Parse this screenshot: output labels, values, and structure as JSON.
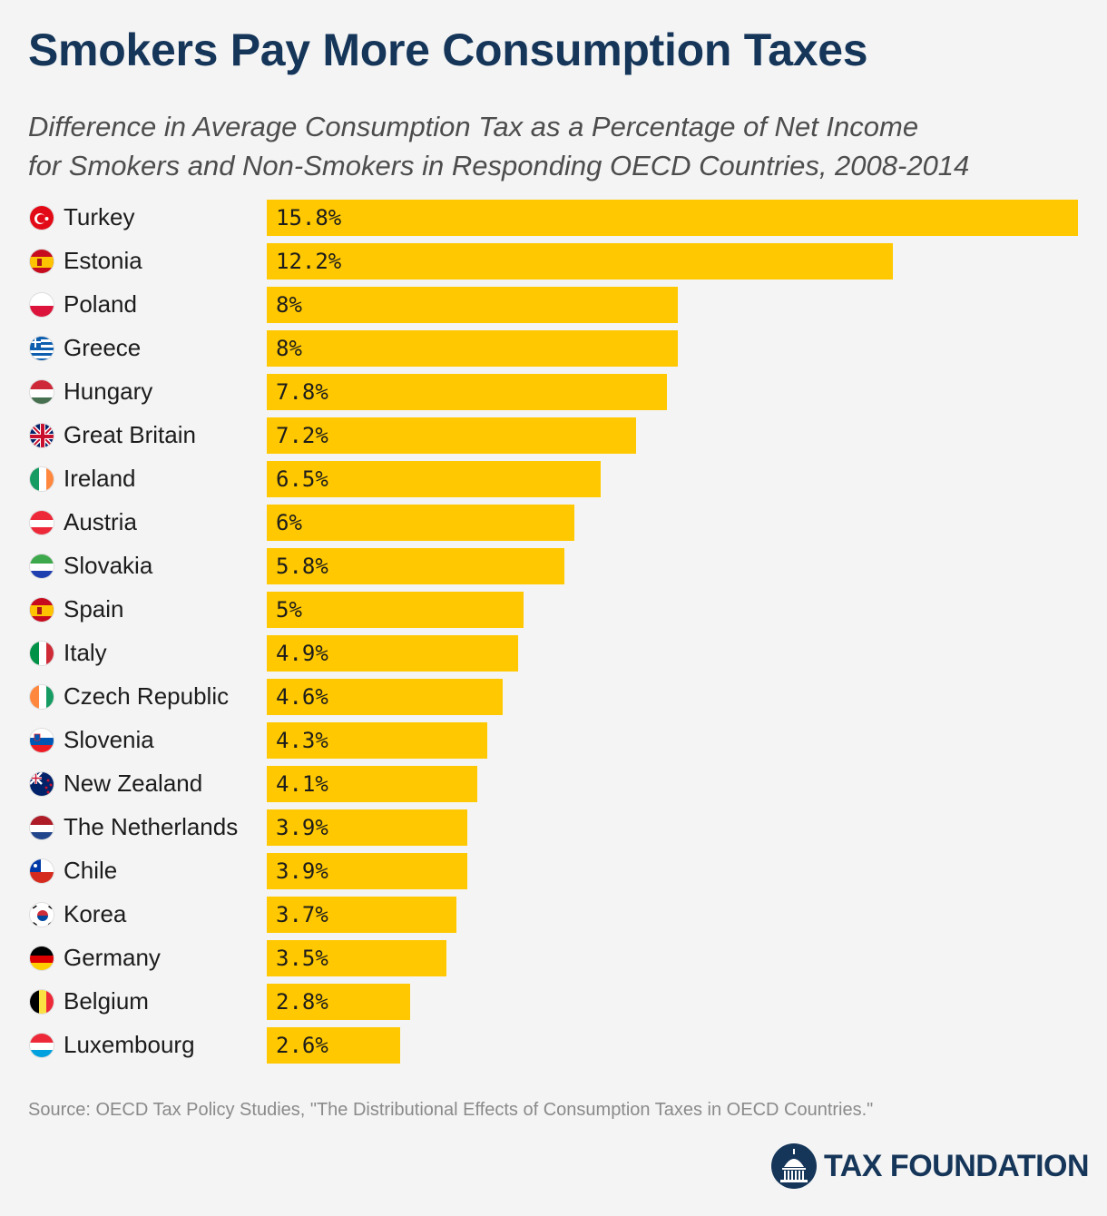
{
  "header": {
    "title": "Smokers Pay More Consumption Taxes",
    "subtitle_line1": "Difference in Average Consumption Tax as a Percentage of Net Income",
    "subtitle_line2": "for Smokers and Non-Smokers in Responding OECD Countries, 2008-2014"
  },
  "chart_data": {
    "type": "bar",
    "orientation": "horizontal",
    "categories": [
      "Turkey",
      "Estonia",
      "Poland",
      "Greece",
      "Hungary",
      "Great Britain",
      "Ireland",
      "Austria",
      "Slovakia",
      "Spain",
      "Italy",
      "Czech Republic",
      "Slovenia",
      "New Zealand",
      "The Netherlands",
      "Chile",
      "Korea",
      "Germany",
      "Belgium",
      "Luxembourg"
    ],
    "values": [
      15.8,
      12.2,
      8,
      8,
      7.8,
      7.2,
      6.5,
      6,
      5.8,
      5,
      4.9,
      4.6,
      4.3,
      4.1,
      3.9,
      3.9,
      3.7,
      3.5,
      2.8,
      2.6
    ],
    "labels": [
      "15.8%",
      "12.2%",
      "8%",
      "8%",
      "7.8%",
      "7.2%",
      "6.5%",
      "6%",
      "5.8%",
      "5%",
      "4.9%",
      "4.6%",
      "4.3%",
      "4.1%",
      "3.9%",
      "3.9%",
      "3.7%",
      "3.5%",
      "2.8%",
      "2.6%"
    ],
    "flag_icons": [
      "turkey-flag-icon",
      "estonia-flag-icon",
      "poland-flag-icon",
      "greece-flag-icon",
      "hungary-flag-icon",
      "great-britain-flag-icon",
      "ireland-flag-icon",
      "austria-flag-icon",
      "slovakia-flag-icon",
      "spain-flag-icon",
      "italy-flag-icon",
      "czech-republic-flag-icon",
      "slovenia-flag-icon",
      "new-zealand-flag-icon",
      "netherlands-flag-icon",
      "chile-flag-icon",
      "korea-flag-icon",
      "germany-flag-icon",
      "belgium-flag-icon",
      "luxembourg-flag-icon"
    ],
    "xlim": [
      0,
      15.8
    ],
    "bar_color": "#ffc800",
    "grid": false,
    "legend": "none"
  },
  "footer": {
    "source": "Source: OECD Tax Policy Studies, \"The Distributional Effects of Consumption Taxes in OECD Countries.\"",
    "logo_text": "TAX FOUNDATION"
  },
  "colors": {
    "title": "#153559",
    "subtitle": "#4d4d4d",
    "background": "#f4f4f4",
    "source": "#8a8a8a"
  }
}
